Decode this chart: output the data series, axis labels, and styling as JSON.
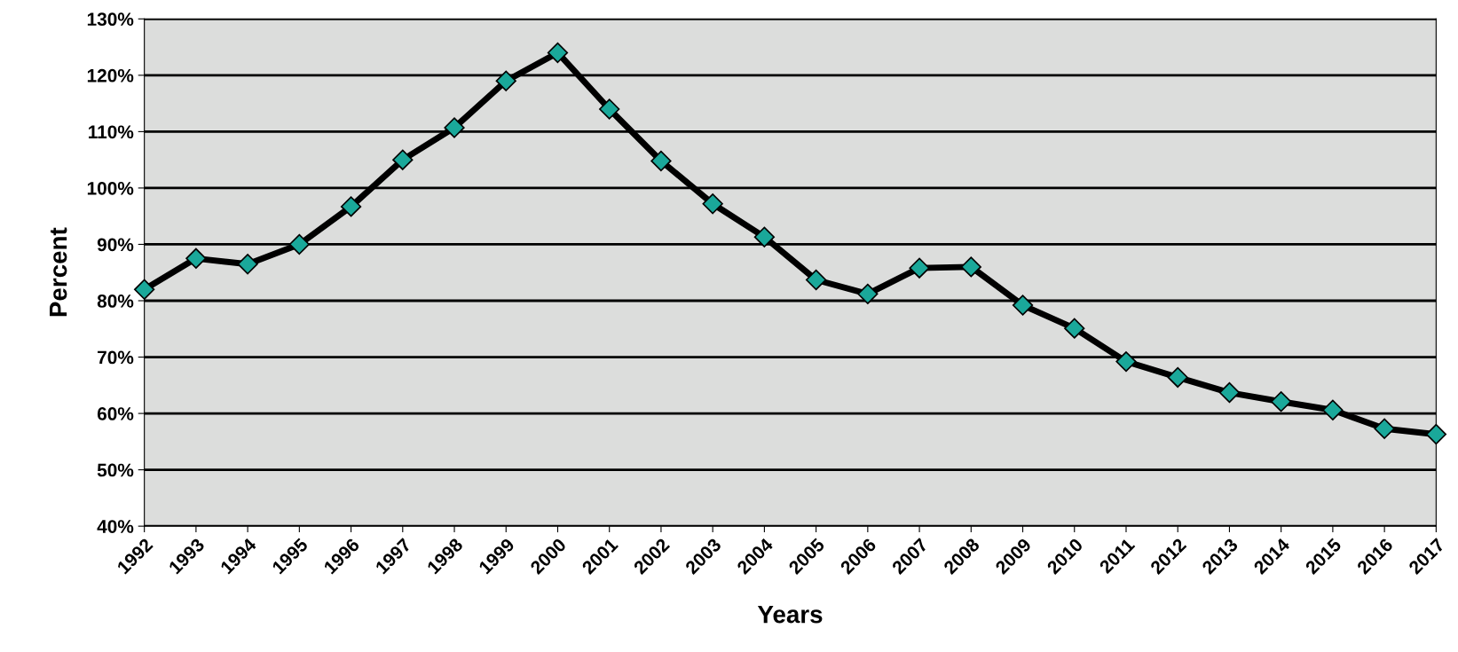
{
  "chart_data": {
    "type": "line",
    "xlabel": "Years",
    "ylabel": "Percent",
    "categories": [
      "1992",
      "1993",
      "1994",
      "1995",
      "1996",
      "1997",
      "1998",
      "1999",
      "2000",
      "2001",
      "2002",
      "2003",
      "2004",
      "2005",
      "2006",
      "2007",
      "2008",
      "2009",
      "2010",
      "2011",
      "2012",
      "2013",
      "2014",
      "2015",
      "2016",
      "2017"
    ],
    "series": [
      {
        "color": "#1aa89a",
        "values": [
          82,
          87.5,
          86.5,
          90,
          96.7,
          105,
          110.7,
          119,
          124,
          114,
          104.8,
          97.2,
          91.3,
          83.7,
          81.2,
          85.8,
          86,
          79.2,
          75.1,
          69.2,
          66.4,
          63.7,
          62.1,
          60.6,
          57.3,
          56.3
        ]
      }
    ],
    "ylim": [
      40,
      130
    ],
    "yticks": [
      {
        "value": 40,
        "label": "40%"
      },
      {
        "value": 50,
        "label": "50%"
      },
      {
        "value": 60,
        "label": "60%"
      },
      {
        "value": 70,
        "label": "70%"
      },
      {
        "value": 80,
        "label": "80%"
      },
      {
        "value": 90,
        "label": "90%"
      },
      {
        "value": 100,
        "label": "100%"
      },
      {
        "value": 110,
        "label": "110%"
      },
      {
        "value": 120,
        "label": "120%"
      },
      {
        "value": 130,
        "label": "130%"
      }
    ],
    "grid": "y",
    "marker": "diamond",
    "line_style": "solid"
  }
}
